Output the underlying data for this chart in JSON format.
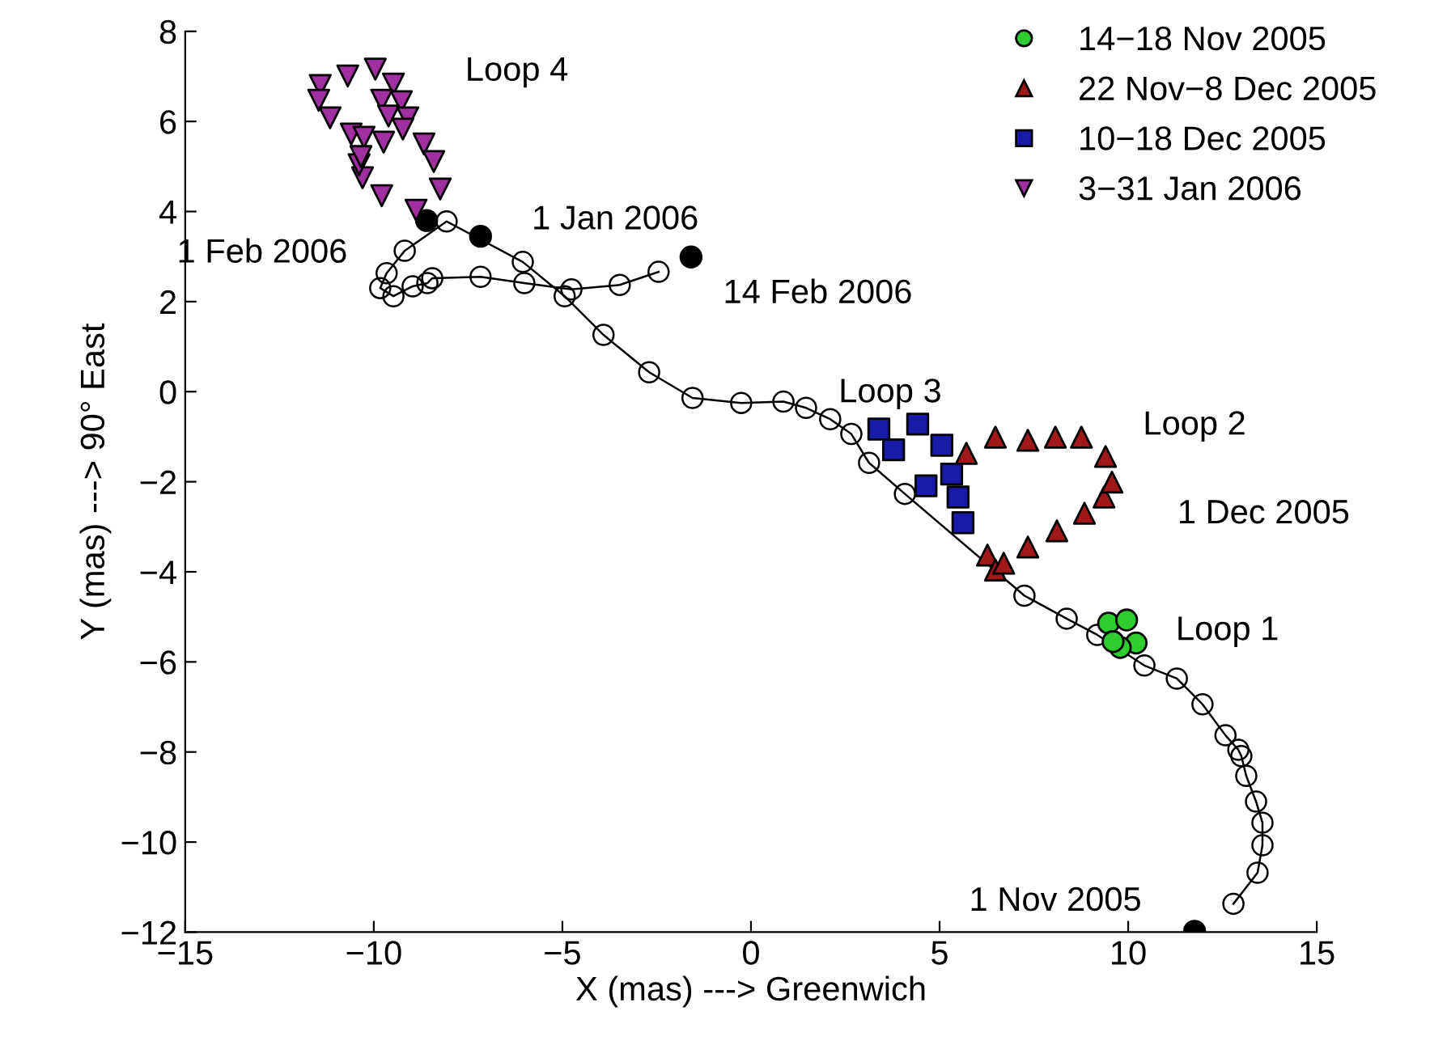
{
  "chart_data": {
    "type": "scatter",
    "xlabel": "X (mas) ---> Greenwich",
    "ylabel": "Y (mas) ---> 90° East",
    "xlim": [
      -15,
      15
    ],
    "ylim": [
      -12,
      8
    ],
    "xticks": [
      -15,
      -10,
      -5,
      0,
      5,
      10,
      15
    ],
    "yticks": [
      -12,
      -10,
      -8,
      -6,
      -4,
      -2,
      0,
      2,
      4,
      6,
      8
    ],
    "grid": false,
    "legend": "top right",
    "series": [
      {
        "type": "line",
        "color": "#000000",
        "marker": "circle",
        "x": [
          12.79,
          13.43,
          13.56,
          13.56,
          13.39,
          13.13,
          13.0,
          12.92,
          12.58,
          11.97,
          11.29,
          10.43,
          9.18,
          8.37,
          7.25,
          4.08,
          3.13,
          2.66,
          2.1,
          1.46,
          0.86,
          -0.26,
          -1.55,
          -2.7,
          -3.91,
          -4.94,
          -6.05,
          -8.07,
          -9.18,
          -9.66,
          -9.83,
          -9.48,
          -8.97,
          -8.58,
          -8.45,
          -7.17,
          -6.01,
          -4.76,
          -3.48,
          -2.45
        ],
        "values": [
          -11.37,
          -10.68,
          -10.07,
          -9.57,
          -9.1,
          -8.53,
          -8.09,
          -7.95,
          -7.63,
          -6.94,
          -6.37,
          -6.08,
          -5.4,
          -5.04,
          -4.53,
          -2.27,
          -1.58,
          -0.94,
          -0.61,
          -0.36,
          -0.22,
          -0.25,
          -0.14,
          0.43,
          1.26,
          2.12,
          2.88,
          3.78,
          3.13,
          2.63,
          2.3,
          2.12,
          2.34,
          2.41,
          2.52,
          2.55,
          2.41,
          2.27,
          2.37,
          2.66
        ]
      },
      {
        "color": "#000000",
        "marker": "circle",
        "x": [
          11.76,
          -7.17,
          -8.6,
          -1.59
        ],
        "values": [
          -11.98,
          3.45,
          3.8,
          2.99
        ]
      },
      {
        "name": "14−18 Nov 2005",
        "color": "#2ecc2e",
        "marker": "circle",
        "x": [
          9.48,
          9.96,
          10.21,
          9.79,
          9.6
        ],
        "values": [
          -5.14,
          -5.07,
          -5.58,
          -5.68,
          -5.55
        ]
      },
      {
        "name": "22 Nov−8 Dec 2005",
        "color": "#a01818",
        "marker": "triangle",
        "x": [
          6.27,
          6.48,
          6.7,
          7.34,
          8.11,
          8.84,
          9.36,
          9.57,
          9.4,
          8.76,
          8.07,
          7.34,
          6.48,
          5.71
        ],
        "values": [
          -3.63,
          -3.96,
          -3.81,
          -3.45,
          -3.09,
          -2.7,
          -2.34,
          -2.01,
          -1.44,
          -1.01,
          -1.01,
          -1.08,
          -1.01,
          -1.37
        ]
      },
      {
        "name": "10−18 Dec 2005",
        "color": "#1a1aa8",
        "marker": "square",
        "x": [
          3.39,
          3.78,
          4.42,
          5.06,
          5.32,
          5.49,
          5.62,
          4.64
        ],
        "values": [
          -0.83,
          -1.29,
          -0.72,
          -1.19,
          -1.83,
          -2.34,
          -2.91,
          -2.09
        ]
      },
      {
        "name": "3−31 Jan 2006",
        "color": "#a030a0",
        "marker": "triangle-down",
        "x": [
          -11.42,
          -11.46,
          -11.16,
          -10.69,
          -9.96,
          -9.48,
          -9.79,
          -9.27,
          -9.61,
          -9.1,
          -9.23,
          -9.74,
          -8.67,
          -8.41,
          -8.24,
          -8.88,
          -9.79,
          -10.3,
          -10.39,
          -10.6,
          -10.26,
          -10.34
        ],
        "values": [
          6.8,
          6.47,
          6.08,
          7.01,
          7.16,
          6.83,
          6.47,
          6.44,
          6.12,
          6.08,
          5.83,
          5.54,
          5.5,
          5.11,
          4.5,
          4.03,
          4.35,
          4.75,
          5.04,
          5.72,
          5.65,
          5.22
        ]
      }
    ],
    "annotations": [
      "Loop 4",
      "Loop 3",
      "Loop 2",
      "1 Dec 2005",
      "Loop 1",
      "1 Nov 2005",
      "1 Jan 2006",
      "1 Feb 2006",
      "14 Feb 2006"
    ]
  }
}
